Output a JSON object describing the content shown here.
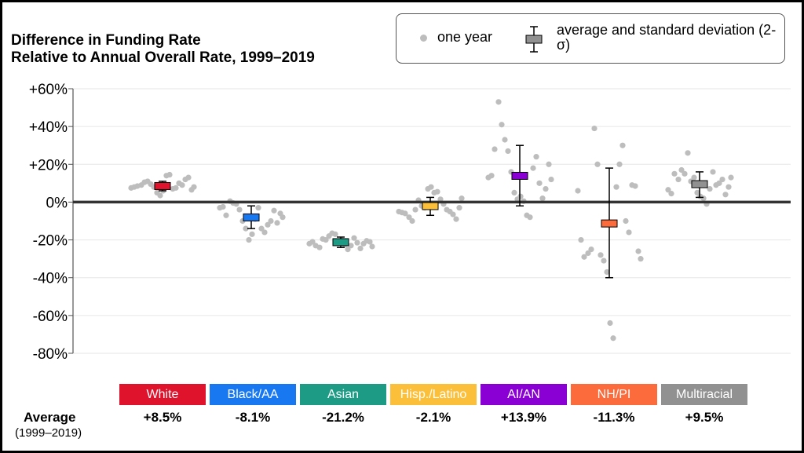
{
  "chart_data": {
    "type": "scatter",
    "title_lines": [
      "Difference in Funding Rate",
      "Relative to Annual Overall Rate, 1999–2019"
    ],
    "ylim": [
      -80,
      60
    ],
    "yticks": [
      "+60%",
      "+40%",
      "+20%",
      "0%",
      "-20%",
      "-40%",
      "-60%",
      "-80%"
    ],
    "ytick_values": [
      60,
      40,
      20,
      0,
      -20,
      -40,
      -60,
      -80
    ],
    "legend": {
      "point_label": "one year",
      "box_label": "average and standard deviation (2-σ)"
    },
    "average_label": "Average",
    "average_sublabel": "(1999–2019)",
    "categories": [
      {
        "name": "White",
        "color": "#e0132d",
        "average": 8.5,
        "average_label": "+8.5%",
        "sd_low": 6,
        "sd_high": 11,
        "points": [
          7.5,
          8,
          8.5,
          9,
          10.5,
          11,
          9.5,
          8,
          5,
          3.5,
          6,
          14,
          14.5,
          7,
          7.5,
          10,
          9,
          12,
          13,
          6.5,
          8
        ]
      },
      {
        "name": "Black/AA",
        "color": "#1778f2",
        "average": -8.1,
        "average_label": "-8.1%",
        "sd_low": -14,
        "sd_high": -2,
        "points": [
          -3,
          -2.5,
          -7,
          0.5,
          -0.5,
          -1,
          -4,
          -10,
          -14,
          -20,
          -17,
          -9,
          -3,
          -14,
          -16,
          -12,
          -10,
          -4.5,
          -11,
          -6,
          -8
        ]
      },
      {
        "name": "Asian",
        "color": "#1e9b85",
        "average": -21.2,
        "average_label": "-21.2%",
        "sd_low": -24,
        "sd_high": -18.5,
        "points": [
          -22,
          -21,
          -23,
          -24,
          -19.5,
          -20,
          -18,
          -16.5,
          -17,
          -21,
          -20,
          -22.5,
          -25,
          -23,
          -19,
          -21.5,
          -24.5,
          -22,
          -20.5,
          -21,
          -23.5
        ]
      },
      {
        "name": "Hisp./Latino",
        "color": "#fbbf3a",
        "average": -2.1,
        "average_label": "-2.1%",
        "sd_low": -7,
        "sd_high": 2.5,
        "points": [
          -5,
          -5.5,
          -6,
          -8,
          -10,
          -4,
          1,
          -2,
          -3,
          7,
          8,
          5,
          5.5,
          1.5,
          -1,
          -4,
          -5,
          -6.5,
          -9,
          -3,
          2
        ]
      },
      {
        "name": "AI/AN",
        "color": "#8a00d4",
        "average": 13.9,
        "average_label": "+13.9%",
        "sd_low": -2,
        "sd_high": 30,
        "points": [
          13,
          14,
          28,
          53,
          41,
          33,
          27,
          16,
          5,
          1.5,
          3,
          0.5,
          -7,
          -8,
          18,
          24,
          10,
          2,
          7,
          20,
          12
        ]
      },
      {
        "name": "NH/PI",
        "color": "#fb6b3c",
        "average": -11.3,
        "average_label": "-11.3%",
        "sd_low": -40,
        "sd_high": 18,
        "points": [
          6,
          -20,
          -29,
          -27,
          -25,
          39,
          20,
          -28,
          -31,
          -37,
          -64,
          -72,
          8,
          20,
          30,
          -10,
          -16,
          9,
          8.5,
          -26,
          -30
        ]
      },
      {
        "name": "Multiracial",
        "color": "#919191",
        "average": 9.5,
        "average_label": "+9.5%",
        "sd_low": 2.5,
        "sd_high": 16,
        "points": [
          6.5,
          4.5,
          15,
          12,
          17,
          15,
          26,
          11,
          13,
          5,
          3,
          2,
          -1,
          7,
          16,
          9,
          10,
          12,
          4,
          8,
          13
        ]
      }
    ]
  }
}
